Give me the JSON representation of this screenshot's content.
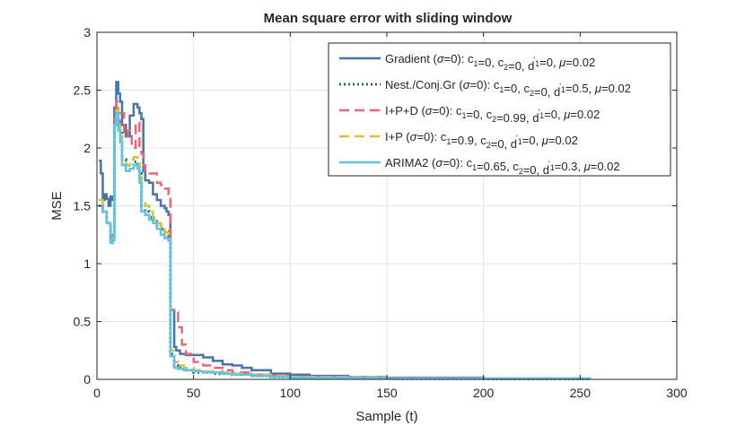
{
  "chart_data": {
    "type": "line",
    "title": "Mean square error with sliding window",
    "xlabel": "Sample (t)",
    "ylabel": "MSE",
    "xlim": [
      0,
      300
    ],
    "ylim": [
      0,
      3
    ],
    "xticks": [
      0,
      50,
      100,
      150,
      200,
      250,
      300
    ],
    "yticks": [
      0,
      0.5,
      1,
      1.5,
      2,
      2.5,
      3
    ],
    "xtick_labels": [
      "0",
      "50",
      "100",
      "150",
      "200",
      "250",
      "300"
    ],
    "ytick_labels": [
      "0",
      "0.5",
      "1",
      "1.5",
      "2",
      "2.5",
      "3"
    ],
    "grid": true,
    "legend_position": "top-right",
    "series": [
      {
        "name": "Gradient (σ=0): c1=0, c2=0, d'1=0, μ=0.02",
        "color": "#4a74a8",
        "dash": "solid",
        "points": [
          [
            1,
            1.89
          ],
          [
            2,
            1.78
          ],
          [
            3,
            1.55
          ],
          [
            4,
            1.6
          ],
          [
            5,
            1.56
          ],
          [
            6,
            1.5
          ],
          [
            7,
            1.58
          ],
          [
            8,
            1.55
          ],
          [
            9,
            2.35
          ],
          [
            10,
            2.57
          ],
          [
            11,
            2.47
          ],
          [
            12,
            2.4
          ],
          [
            13,
            2.2
          ],
          [
            15,
            2.1
          ],
          [
            17,
            2.28
          ],
          [
            19,
            2.38
          ],
          [
            21,
            2.35
          ],
          [
            22,
            2.3
          ],
          [
            23,
            2.25
          ],
          [
            24,
            1.8
          ],
          [
            25,
            1.72
          ],
          [
            27,
            1.7
          ],
          [
            29,
            1.6
          ],
          [
            31,
            1.55
          ],
          [
            33,
            1.5
          ],
          [
            35,
            1.48
          ],
          [
            36,
            1.45
          ],
          [
            37,
            1.42
          ],
          [
            38,
            0.6
          ],
          [
            40,
            0.28
          ],
          [
            41,
            0.25
          ],
          [
            43,
            0.22
          ],
          [
            46,
            0.21
          ],
          [
            50,
            0.21
          ],
          [
            55,
            0.19
          ],
          [
            60,
            0.16
          ],
          [
            65,
            0.13
          ],
          [
            70,
            0.12
          ],
          [
            75,
            0.1
          ],
          [
            80,
            0.08
          ],
          [
            90,
            0.05
          ],
          [
            100,
            0.04
          ],
          [
            110,
            0.03
          ],
          [
            130,
            0.02
          ],
          [
            150,
            0.015
          ],
          [
            200,
            0.008
          ],
          [
            255,
            0.004
          ]
        ]
      },
      {
        "name": "Nest./Conj.Gr (σ=0): c1=0, c2=0, d'1=0.5, μ=0.02",
        "color": "#2a7a3a",
        "dash": "dotted",
        "points": [
          [
            1,
            1.5
          ],
          [
            3,
            1.45
          ],
          [
            5,
            1.35
          ],
          [
            7,
            1.18
          ],
          [
            8,
            1.22
          ],
          [
            9,
            2.2
          ],
          [
            10,
            2.35
          ],
          [
            11,
            2.22
          ],
          [
            12,
            2.15
          ],
          [
            13,
            1.9
          ],
          [
            15,
            1.86
          ],
          [
            17,
            1.85
          ],
          [
            19,
            1.88
          ],
          [
            21,
            1.86
          ],
          [
            22,
            1.78
          ],
          [
            23,
            1.5
          ],
          [
            25,
            1.45
          ],
          [
            27,
            1.4
          ],
          [
            29,
            1.38
          ],
          [
            31,
            1.33
          ],
          [
            33,
            1.3
          ],
          [
            35,
            1.28
          ],
          [
            37,
            1.24
          ],
          [
            38,
            0.22
          ],
          [
            40,
            0.12
          ],
          [
            42,
            0.1
          ],
          [
            45,
            0.08
          ],
          [
            50,
            0.06
          ],
          [
            55,
            0.06
          ],
          [
            60,
            0.05
          ],
          [
            70,
            0.04
          ],
          [
            80,
            0.03
          ],
          [
            90,
            0.02
          ],
          [
            100,
            0.012
          ],
          [
            150,
            0.006
          ],
          [
            200,
            0.004
          ],
          [
            255,
            0.003
          ]
        ]
      },
      {
        "name": "I+P+D (σ=0): c1=0, c2=0.99, d'1=0, μ=0.02",
        "color": "#e86877",
        "dash": "dashed",
        "points": [
          [
            1,
            1.5
          ],
          [
            3,
            1.45
          ],
          [
            5,
            1.35
          ],
          [
            7,
            1.2
          ],
          [
            8,
            1.25
          ],
          [
            9,
            2.25
          ],
          [
            10,
            2.4
          ],
          [
            11,
            2.2
          ],
          [
            12,
            2.3
          ],
          [
            14,
            2.1
          ],
          [
            16,
            2.15
          ],
          [
            18,
            2.0
          ],
          [
            20,
            2.22
          ],
          [
            22,
            2.0
          ],
          [
            23,
            1.95
          ],
          [
            24,
            1.85
          ],
          [
            25,
            1.8
          ],
          [
            27,
            1.78
          ],
          [
            29,
            1.78
          ],
          [
            31,
            1.7
          ],
          [
            33,
            1.68
          ],
          [
            35,
            1.65
          ],
          [
            37,
            1.6
          ],
          [
            38,
            0.6
          ],
          [
            40,
            0.58
          ],
          [
            42,
            0.45
          ],
          [
            44,
            0.3
          ],
          [
            46,
            0.22
          ],
          [
            50,
            0.15
          ],
          [
            55,
            0.12
          ],
          [
            60,
            0.1
          ],
          [
            65,
            0.08
          ],
          [
            70,
            0.06
          ],
          [
            80,
            0.04
          ],
          [
            90,
            0.03
          ],
          [
            100,
            0.02
          ],
          [
            150,
            0.01
          ],
          [
            200,
            0.006
          ],
          [
            255,
            0.004
          ]
        ]
      },
      {
        "name": "I+P (σ=0): c1=0.9, c2=0, d'1=0, μ=0.02",
        "color": "#d4c04a",
        "dash": "dashed",
        "points": [
          [
            1,
            1.55
          ],
          [
            3,
            1.45
          ],
          [
            5,
            1.35
          ],
          [
            7,
            1.18
          ],
          [
            8,
            1.22
          ],
          [
            9,
            2.25
          ],
          [
            10,
            2.35
          ],
          [
            11,
            2.2
          ],
          [
            12,
            2.12
          ],
          [
            13,
            1.9
          ],
          [
            15,
            1.85
          ],
          [
            17,
            1.9
          ],
          [
            19,
            1.92
          ],
          [
            21,
            1.9
          ],
          [
            22,
            1.8
          ],
          [
            23,
            1.55
          ],
          [
            25,
            1.5
          ],
          [
            27,
            1.45
          ],
          [
            29,
            1.4
          ],
          [
            31,
            1.35
          ],
          [
            33,
            1.3
          ],
          [
            35,
            1.27
          ],
          [
            37,
            1.24
          ],
          [
            38,
            0.25
          ],
          [
            40,
            0.15
          ],
          [
            42,
            0.12
          ],
          [
            45,
            0.1
          ],
          [
            50,
            0.08
          ],
          [
            55,
            0.07
          ],
          [
            60,
            0.07
          ],
          [
            65,
            0.06
          ],
          [
            70,
            0.05
          ],
          [
            80,
            0.04
          ],
          [
            90,
            0.03
          ],
          [
            100,
            0.02
          ],
          [
            150,
            0.008
          ],
          [
            200,
            0.005
          ],
          [
            255,
            0.003
          ]
        ]
      },
      {
        "name": "ARIMA2 (σ=0): c1=0.65, c2=0, d'1=0.3, μ=0.02",
        "color": "#5fc4e8",
        "dash": "solid",
        "points": [
          [
            1,
            1.5
          ],
          [
            3,
            1.45
          ],
          [
            5,
            1.35
          ],
          [
            7,
            1.18
          ],
          [
            8,
            1.2
          ],
          [
            9,
            2.2
          ],
          [
            10,
            2.3
          ],
          [
            11,
            2.15
          ],
          [
            12,
            2.05
          ],
          [
            13,
            1.85
          ],
          [
            15,
            1.8
          ],
          [
            17,
            1.82
          ],
          [
            19,
            1.85
          ],
          [
            21,
            1.82
          ],
          [
            22,
            1.7
          ],
          [
            23,
            1.45
          ],
          [
            25,
            1.42
          ],
          [
            27,
            1.38
          ],
          [
            29,
            1.35
          ],
          [
            31,
            1.3
          ],
          [
            33,
            1.25
          ],
          [
            35,
            1.22
          ],
          [
            37,
            1.2
          ],
          [
            38,
            0.2
          ],
          [
            40,
            0.1
          ],
          [
            42,
            0.09
          ],
          [
            45,
            0.08
          ],
          [
            50,
            0.07
          ],
          [
            55,
            0.06
          ],
          [
            60,
            0.06
          ],
          [
            65,
            0.05
          ],
          [
            70,
            0.04
          ],
          [
            80,
            0.03
          ],
          [
            90,
            0.02
          ],
          [
            100,
            0.015
          ],
          [
            150,
            0.008
          ],
          [
            200,
            0.005
          ],
          [
            255,
            0.003
          ]
        ]
      }
    ],
    "legend_labels": [
      [
        [
          "Gradient ("
        ],
        [
          "σ",
          "i"
        ],
        [
          "=0): c"
        ],
        [
          "1",
          "sub"
        ],
        [
          "=0, c"
        ],
        [
          "2",
          "sub"
        ],
        [
          "=0, d"
        ],
        [
          "'",
          "sup"
        ],
        [
          "1",
          "sub"
        ],
        [
          "=0, "
        ],
        [
          "μ",
          "i"
        ],
        [
          "=0.02"
        ]
      ],
      [
        [
          "Nest./Conj.Gr ("
        ],
        [
          "σ",
          "i"
        ],
        [
          "=0): c"
        ],
        [
          "1",
          "sub"
        ],
        [
          "=0, c"
        ],
        [
          "2",
          "sub"
        ],
        [
          "=0, d"
        ],
        [
          "'",
          "sup"
        ],
        [
          "1",
          "sub"
        ],
        [
          "=0.5, "
        ],
        [
          "μ",
          "i"
        ],
        [
          "=0.02"
        ]
      ],
      [
        [
          "I+P+D ("
        ],
        [
          "σ",
          "i"
        ],
        [
          "=0): c"
        ],
        [
          "1",
          "sub"
        ],
        [
          "=0, c"
        ],
        [
          "2",
          "sub"
        ],
        [
          "=0.99, d"
        ],
        [
          "'",
          "sup"
        ],
        [
          "1",
          "sub"
        ],
        [
          "=0, "
        ],
        [
          "μ",
          "i"
        ],
        [
          "=0.02"
        ]
      ],
      [
        [
          "I+P ("
        ],
        [
          "σ",
          "i"
        ],
        [
          "=0): c"
        ],
        [
          "1",
          "sub"
        ],
        [
          "=0.9, c"
        ],
        [
          "2",
          "sub"
        ],
        [
          "=0, d"
        ],
        [
          "'",
          "sup"
        ],
        [
          "1",
          "sub"
        ],
        [
          "=0, "
        ],
        [
          "μ",
          "i"
        ],
        [
          "=0.02"
        ]
      ],
      [
        [
          "ARIMA2 ("
        ],
        [
          "σ",
          "i"
        ],
        [
          "=0): c"
        ],
        [
          "1",
          "sub"
        ],
        [
          "=0.65, c"
        ],
        [
          "2",
          "sub"
        ],
        [
          "=0, d"
        ],
        [
          "'",
          "sup"
        ],
        [
          "1",
          "sub"
        ],
        [
          "=0.3, "
        ],
        [
          "μ",
          "i"
        ],
        [
          "=0.02"
        ]
      ]
    ]
  }
}
